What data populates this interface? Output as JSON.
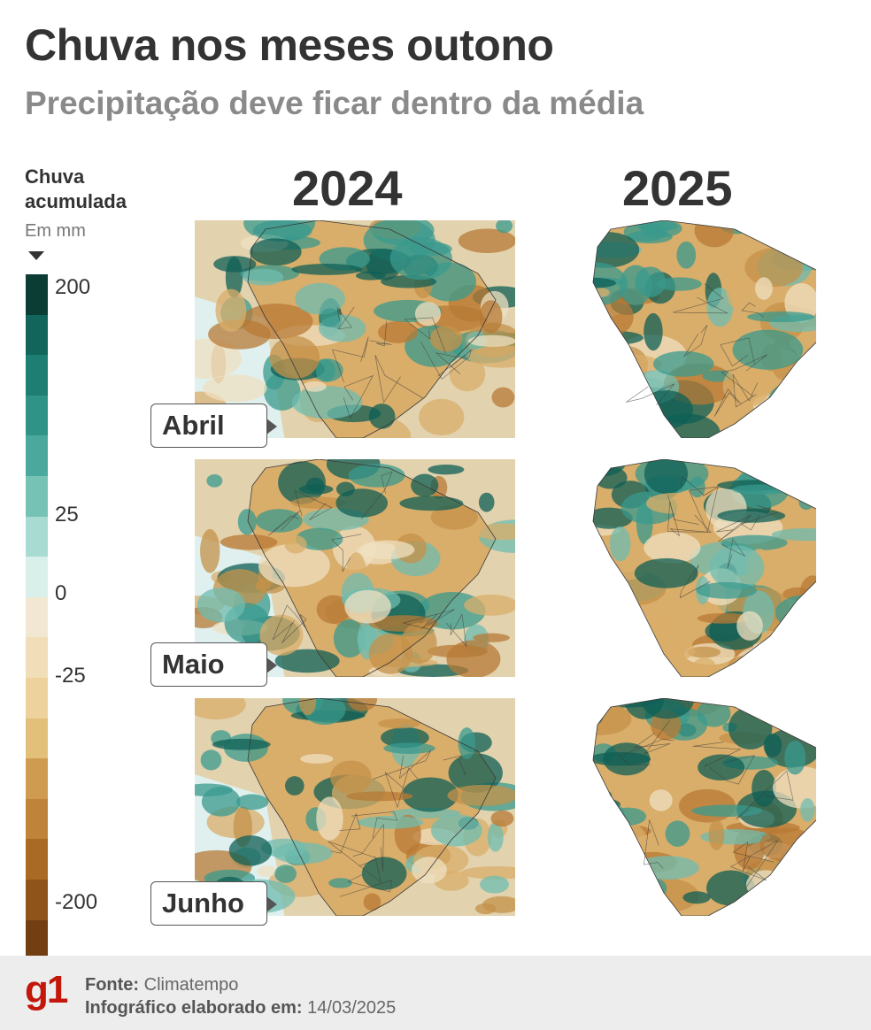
{
  "header": {
    "title": "Chuva nos meses outono",
    "subtitle": "Precipitação deve ficar dentro da média"
  },
  "legend": {
    "title_line1": "Chuva",
    "title_line2": "acumulada",
    "unit": "Em mm",
    "ticks": [
      "200",
      "25",
      "0",
      "-25",
      "-200"
    ],
    "colors": [
      "#0b3d34",
      "#11655a",
      "#1f7e73",
      "#2f9387",
      "#4aa99c",
      "#76c2b5",
      "#a8dbd1",
      "#d9efe9",
      "#f2e7d2",
      "#f1deb8",
      "#eed29e",
      "#e2c07a",
      "#cf9b50",
      "#bf843a",
      "#a86a24",
      "#8f541a",
      "#733f12",
      "#5a2f0c"
    ]
  },
  "columns": {
    "year_left": "2024",
    "year_right": "2025"
  },
  "months": [
    "Abril",
    "Maio",
    "Junho"
  ],
  "footer": {
    "logo": "g1",
    "source_label": "Fonte:",
    "source_value": "Climatempo",
    "date_label": "Infográfico elaborado em:",
    "date_value": "14/03/2025"
  },
  "map_palette": {
    "ocean": "#dff0ee",
    "land_dry": "#d9ad6a",
    "land_dry_deep": "#b77a35",
    "land_wet": "#3a9a8e",
    "land_wet_deep": "#0f5f55",
    "land_neutral": "#efe0c2",
    "border": "#3a3a3a"
  }
}
